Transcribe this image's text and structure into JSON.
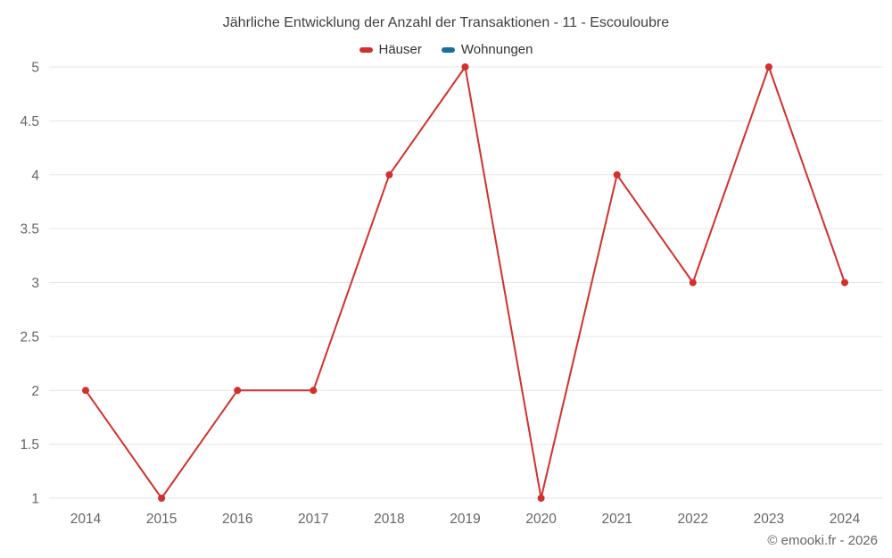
{
  "chart": {
    "title": "Jährliche Entwicklung der Anzahl der Transaktionen - 11 - Escouloubre",
    "footer": "© emooki.fr - 2026",
    "legend": [
      {
        "label": "Häuser",
        "color": "#d2302c"
      },
      {
        "label": "Wohnungen",
        "color": "#1a6e9e"
      }
    ]
  },
  "chart_data": {
    "type": "line",
    "title": "Jährliche Entwicklung der Anzahl der Transaktionen - 11 - Escouloubre",
    "categories": [
      2014,
      2015,
      2016,
      2017,
      2018,
      2019,
      2020,
      2021,
      2022,
      2023,
      2024
    ],
    "series": [
      {
        "name": "Häuser",
        "color": "#d2302c",
        "values": [
          2,
          1,
          2,
          2,
          4,
          5,
          1,
          4,
          3,
          5,
          3
        ]
      },
      {
        "name": "Wohnungen",
        "color": "#1a6e9e",
        "values": []
      }
    ],
    "xlabel": "",
    "ylabel": "",
    "ylim": [
      1,
      5
    ],
    "ytick_step": 0.5,
    "grid": true,
    "grid_color": "#e6e6e6",
    "legend_position": "top",
    "marker_radius": 4,
    "line_width": 2
  }
}
